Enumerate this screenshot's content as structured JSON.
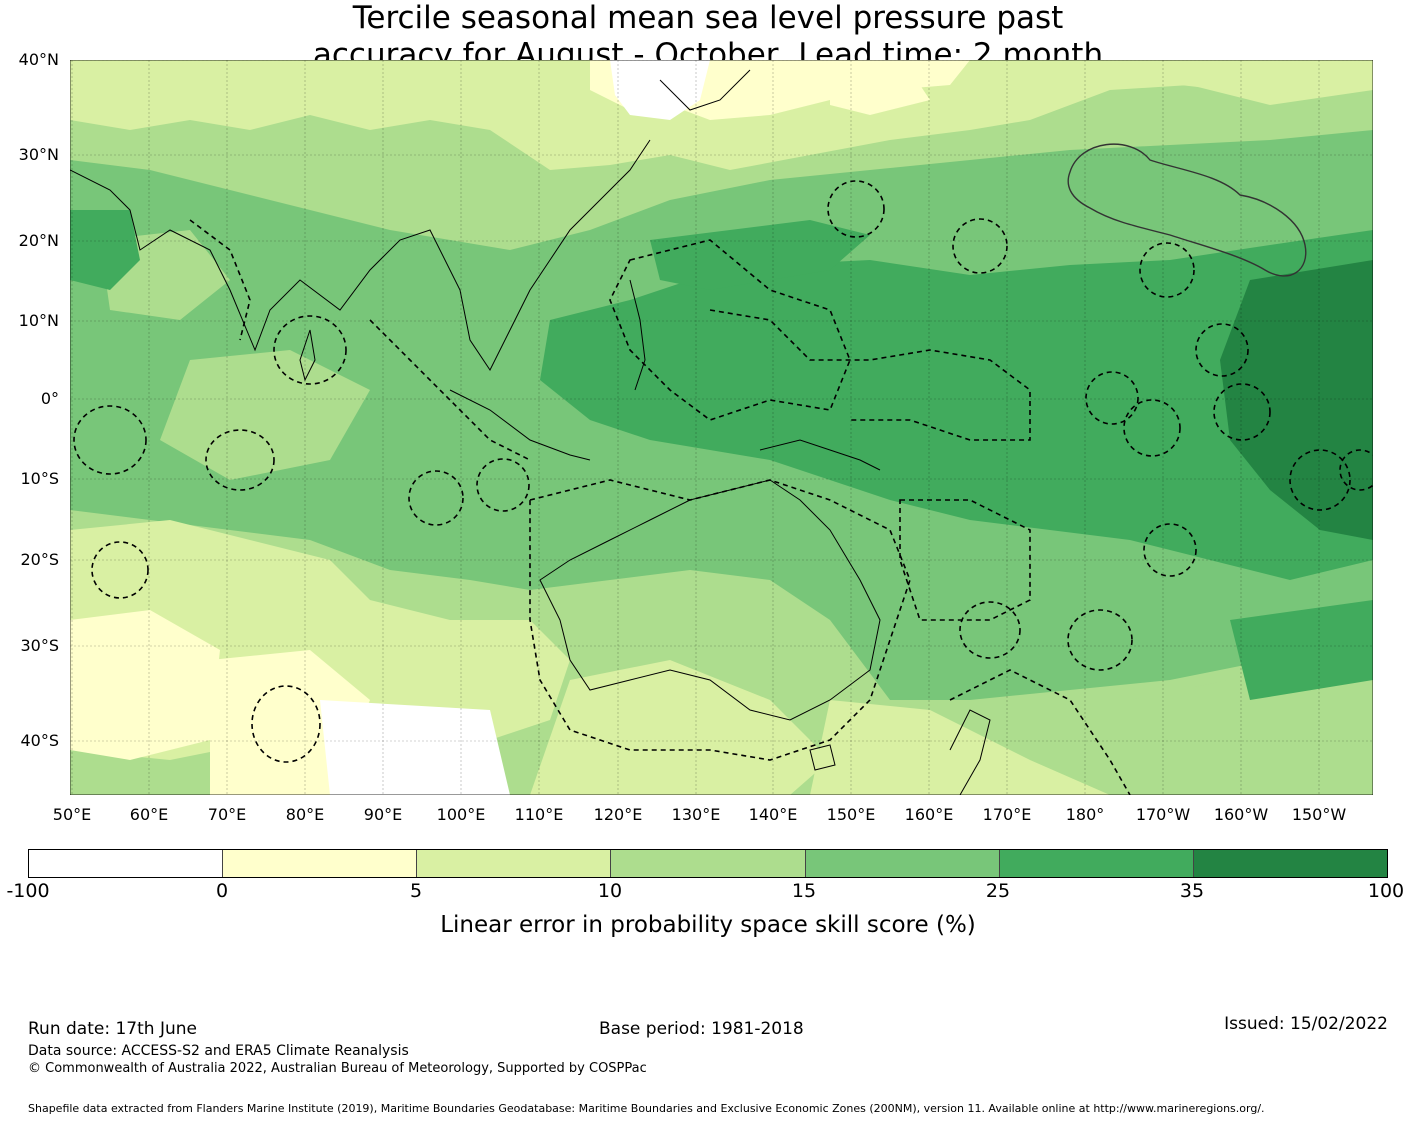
{
  "title": {
    "line1": "Tercile seasonal mean sea level pressure past",
    "line2": "accuracy for August - October, Lead time: 2 month"
  },
  "map": {
    "lat_labels": [
      "40°N",
      "30°N",
      "20°N",
      "10°N",
      "0°",
      "10°S",
      "20°S",
      "30°S",
      "40°S"
    ],
    "lon_labels": [
      "50°E",
      "60°E",
      "70°E",
      "80°E",
      "90°E",
      "100°E",
      "110°E",
      "120°E",
      "130°E",
      "140°E",
      "150°E",
      "160°E",
      "170°E",
      "180°",
      "170°W",
      "160°W",
      "150°W"
    ],
    "lat_range": [
      -46,
      40
    ],
    "lon_range": [
      50,
      217
    ]
  },
  "colorbar": {
    "ticks": [
      "-100",
      "0",
      "5",
      "10",
      "15",
      "25",
      "35",
      "100"
    ],
    "colors": [
      "#ffffff",
      "#ffffcc",
      "#d9f0a3",
      "#addd8e",
      "#78c679",
      "#41ab5d",
      "#238443"
    ],
    "label": "Linear error in probability space skill score (%)"
  },
  "footer": {
    "run_date": "Run date: 17th June",
    "base_period": "Base period: 1981-2018",
    "issued": "Issued: 15/02/2022",
    "data_source": "Data source: ACCESS-S2 and ERA5 Climate Reanalysis",
    "copyright": "© Commonwealth of Australia 2022, Australian Bureau of Meteorology, Supported by COSPPac",
    "shapefile": "Shapefile data extracted from Flanders Marine Institute (2019), Maritime Boundaries Geodatabase: Maritime Boundaries and Exclusive Economic Zones (200NM), version 11. Available online at http://www.marineregions.org/."
  }
}
